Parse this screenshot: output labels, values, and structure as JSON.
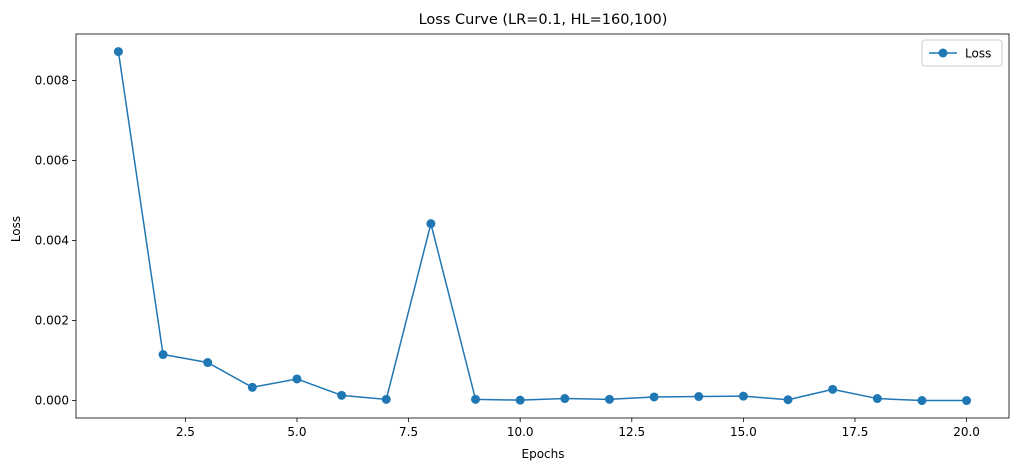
{
  "chart_data": {
    "type": "line",
    "title": "Loss Curve (LR=0.1, HL=160,100)",
    "xlabel": "Epochs",
    "ylabel": "Loss",
    "xlim": [
      0.05,
      20.95
    ],
    "ylim": [
      -0.000436,
      0.00916
    ],
    "x_ticks": [
      2.5,
      5.0,
      7.5,
      10.0,
      12.5,
      15.0,
      17.5,
      20.0
    ],
    "x_tick_labels": [
      "2.5",
      "5.0",
      "7.5",
      "10.0",
      "12.5",
      "15.0",
      "17.5",
      "20.0"
    ],
    "y_ticks": [
      0.0,
      0.002,
      0.004,
      0.006,
      0.008
    ],
    "y_tick_labels": [
      "0.000",
      "0.002",
      "0.004",
      "0.006",
      "0.008"
    ],
    "grid": false,
    "legend_position": "top-right",
    "series": [
      {
        "name": "Loss",
        "color": "#1f77b4",
        "marker": "circle",
        "x": [
          1,
          2,
          3,
          4,
          5,
          6,
          7,
          8,
          9,
          10,
          11,
          12,
          13,
          14,
          15,
          16,
          17,
          18,
          19,
          20
        ],
        "y": [
          0.00872,
          0.00115,
          0.00095,
          0.00033,
          0.00054,
          0.00013,
          3e-05,
          0.00442,
          3e-05,
          1e-05,
          5e-05,
          3e-05,
          9e-05,
          0.0001,
          0.00011,
          2e-05,
          0.00028,
          5e-05,
          0.0,
          0.0
        ]
      }
    ]
  }
}
